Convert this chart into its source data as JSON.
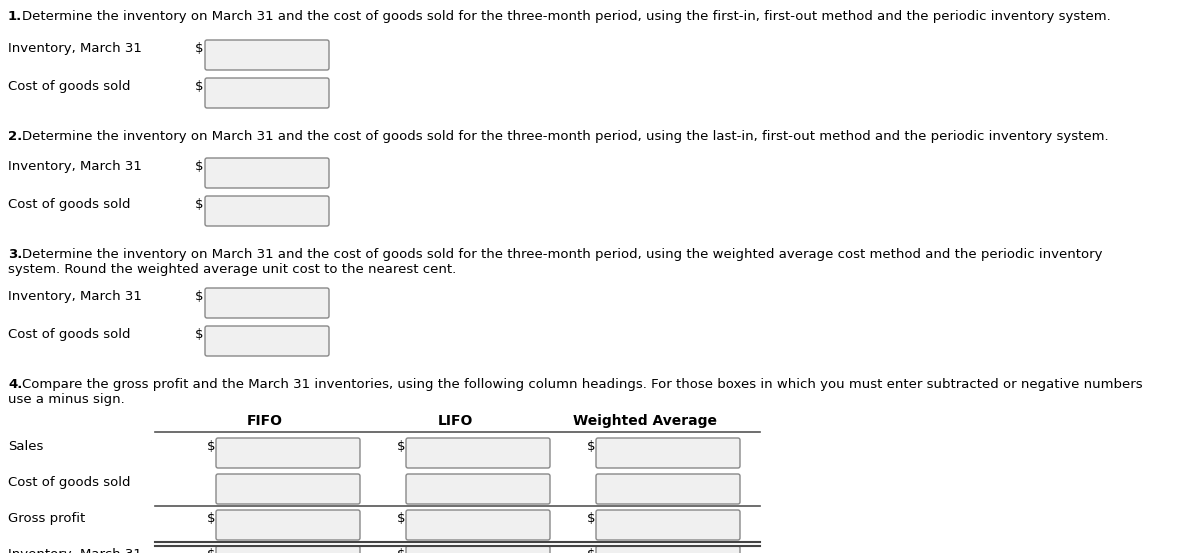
{
  "bg_color": "#ffffff",
  "text_color": "#000000",
  "section1_header_bold": "1.",
  "section1_header_rest": " Determine the inventory on March 31 and the cost of goods sold for the three-month period, using the first-in, first-out method and the periodic inventory system.",
  "section2_header_bold": "2.",
  "section2_header_rest": " Determine the inventory on March 31 and the cost of goods sold for the three-month period, using the last-in, first-out method and the periodic inventory system.",
  "section3_header_bold": "3.",
  "section3_header_rest_line1": " Determine the inventory on March 31 and the cost of goods sold for the three-month period, using the weighted average cost method and the periodic inventory",
  "section3_header_line2": "system. Round the weighted average unit cost to the nearest cent.",
  "section4_header_bold": "4.",
  "section4_header_rest": " Compare the gross profit and the March 31 inventories, using the following column headings. For those boxes in which you must enter subtracted or negative numbers",
  "section4_header2": "use a minus sign.",
  "label_inventory": "Inventory, March 31",
  "label_cogs": "Cost of goods sold",
  "label_sales": "Sales",
  "label_gross_profit": "Gross profit",
  "col_headers": [
    "FIFO",
    "LIFO",
    "Weighted Average"
  ],
  "font_size_header": 9.5,
  "font_size_label": 9.5,
  "font_size_col_header": 10.0
}
